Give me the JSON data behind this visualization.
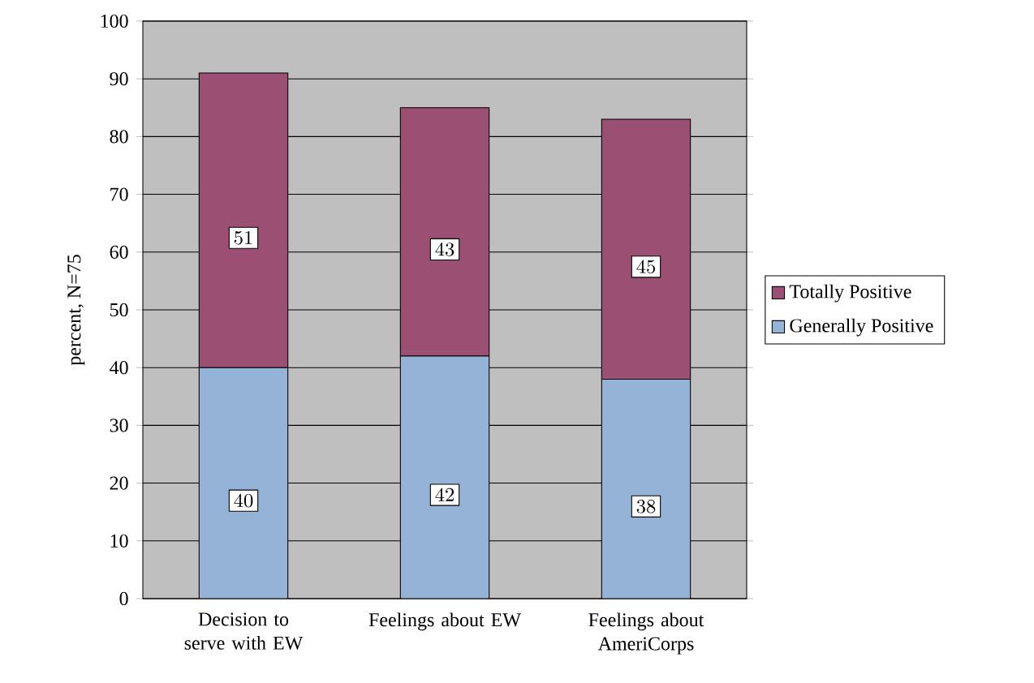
{
  "chart_data": {
    "type": "bar",
    "stacked": true,
    "ylabel": "percent, N=75",
    "categories": [
      "Decision to serve with EW",
      "Feelings about EW",
      "Feelings about AmeriCorps"
    ],
    "series": [
      {
        "name": "Generally Positive",
        "color": "#95b3d7",
        "values": [
          40,
          42,
          38
        ]
      },
      {
        "name": "Totally Positive",
        "color": "#9b4f72",
        "values": [
          51,
          43,
          45
        ]
      }
    ],
    "ylim": [
      0,
      100
    ],
    "yticks": [
      0,
      10,
      20,
      30,
      40,
      50,
      60,
      70,
      80,
      90,
      100
    ],
    "grid": "y",
    "legend": "right",
    "data_labels": true
  }
}
